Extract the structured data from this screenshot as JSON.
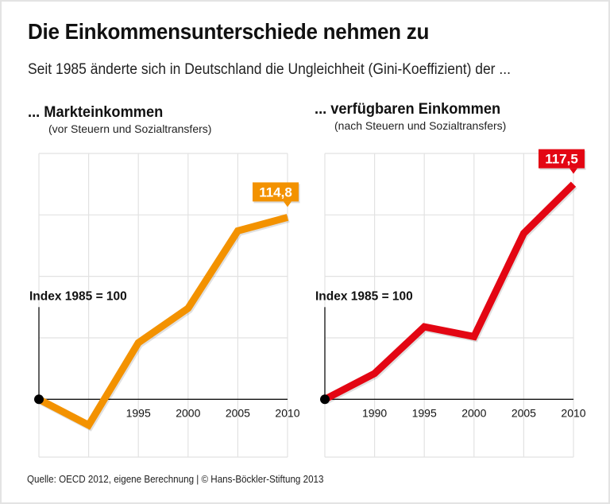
{
  "header": {
    "title": "Die Einkommensunterschiede nehmen zu",
    "subtitle": "Seit 1985 änderte sich in Deutschland die Ungleichheit (Gini-Koeffizient) der ..."
  },
  "footer": {
    "source": "Quelle: OECD 2012, eigene Berechnung | © Hans-Böckler-Stiftung 2013"
  },
  "colors": {
    "orange": "#F39200",
    "red": "#E30613",
    "grid": "#e2e2e2",
    "axis": "#111111"
  },
  "chart_data": [
    {
      "type": "line",
      "title": "... Markteinkommen",
      "subtitle": "(vor Steuern und Sozialtransfers)",
      "ylabel": "Index 1985 = 100",
      "xlabel": "",
      "x": [
        1985,
        1990,
        1995,
        2000,
        2005,
        2010
      ],
      "x_tick_labels": [
        "1995",
        "2000",
        "2005",
        "2010"
      ],
      "series": [
        {
          "name": "Markteinkommen",
          "color": "#F39200",
          "values": [
            100,
            97.9,
            104.6,
            107.4,
            113.7,
            114.8
          ]
        }
      ],
      "end_label": "114,8",
      "ylim": [
        95.3,
        120
      ],
      "grid": true,
      "grid_y_values": [
        105,
        110,
        115,
        120
      ],
      "legend": "none"
    },
    {
      "type": "line",
      "title": "... verfügbaren Einkommen",
      "subtitle": "(nach Steuern und Sozialtransfers)",
      "ylabel": "Index 1985 = 100",
      "xlabel": "",
      "x": [
        1985,
        1990,
        1995,
        2000,
        2005,
        2010
      ],
      "x_tick_labels": [
        "1990",
        "1995",
        "2000",
        "2005",
        "2010"
      ],
      "series": [
        {
          "name": "verfügbare Einkommen",
          "color": "#E30613",
          "values": [
            100,
            102.1,
            105.9,
            105.1,
            113.5,
            117.5
          ]
        }
      ],
      "end_label": "117,5",
      "ylim": [
        95.3,
        120
      ],
      "grid": true,
      "grid_y_values": [
        105,
        110,
        115,
        120
      ],
      "legend": "none"
    }
  ]
}
